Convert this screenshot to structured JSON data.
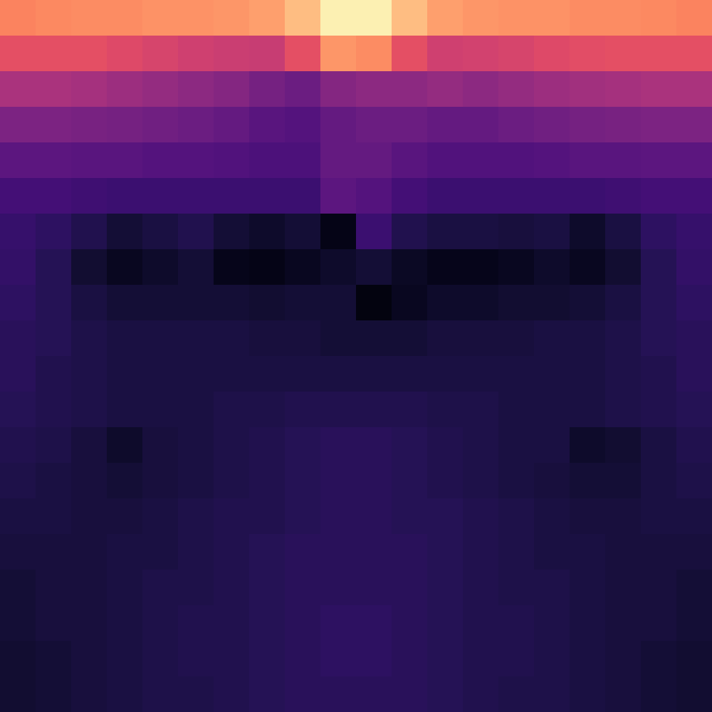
{
  "chart_data": {
    "type": "heatmap",
    "color": "magma",
    "tick_labels": false,
    "zlim": [
      0,
      1
    ],
    "cells": [
      [
        0.74,
        0.75,
        0.76,
        0.76,
        0.77,
        0.77,
        0.78,
        0.8,
        0.86,
        0.97,
        0.97,
        0.86,
        0.8,
        0.78,
        0.77,
        0.77,
        0.76,
        0.76,
        0.75,
        0.74
      ],
      [
        0.62,
        0.62,
        0.62,
        0.6,
        0.58,
        0.56,
        0.55,
        0.54,
        0.62,
        0.78,
        0.76,
        0.62,
        0.56,
        0.57,
        0.58,
        0.6,
        0.61,
        0.62,
        0.62,
        0.62
      ],
      [
        0.47,
        0.47,
        0.46,
        0.44,
        0.42,
        0.4,
        0.38,
        0.34,
        0.32,
        0.38,
        0.4,
        0.4,
        0.42,
        0.4,
        0.42,
        0.44,
        0.45,
        0.46,
        0.47,
        0.47
      ],
      [
        0.36,
        0.36,
        0.35,
        0.34,
        0.33,
        0.32,
        0.3,
        0.27,
        0.26,
        0.3,
        0.32,
        0.32,
        0.3,
        0.3,
        0.32,
        0.33,
        0.34,
        0.35,
        0.36,
        0.36
      ],
      [
        0.28,
        0.28,
        0.27,
        0.27,
        0.26,
        0.26,
        0.25,
        0.24,
        0.24,
        0.3,
        0.3,
        0.27,
        0.25,
        0.25,
        0.25,
        0.26,
        0.27,
        0.27,
        0.28,
        0.28
      ],
      [
        0.22,
        0.22,
        0.21,
        0.2,
        0.2,
        0.2,
        0.2,
        0.2,
        0.2,
        0.28,
        0.26,
        0.22,
        0.2,
        0.2,
        0.2,
        0.2,
        0.2,
        0.21,
        0.22,
        0.22
      ],
      [
        0.19,
        0.17,
        0.14,
        0.1,
        0.12,
        0.14,
        0.1,
        0.08,
        0.1,
        0.04,
        0.2,
        0.14,
        0.12,
        0.12,
        0.11,
        0.12,
        0.08,
        0.12,
        0.17,
        0.19
      ],
      [
        0.18,
        0.15,
        0.09,
        0.06,
        0.08,
        0.1,
        0.05,
        0.04,
        0.06,
        0.08,
        0.1,
        0.07,
        0.05,
        0.05,
        0.06,
        0.08,
        0.06,
        0.09,
        0.15,
        0.18
      ],
      [
        0.17,
        0.15,
        0.12,
        0.1,
        0.1,
        0.1,
        0.1,
        0.09,
        0.1,
        0.1,
        0.03,
        0.06,
        0.08,
        0.08,
        0.09,
        0.09,
        0.1,
        0.12,
        0.15,
        0.17
      ],
      [
        0.16,
        0.15,
        0.13,
        0.12,
        0.12,
        0.12,
        0.12,
        0.11,
        0.11,
        0.1,
        0.1,
        0.1,
        0.11,
        0.11,
        0.11,
        0.12,
        0.12,
        0.13,
        0.15,
        0.16
      ],
      [
        0.16,
        0.14,
        0.13,
        0.12,
        0.12,
        0.12,
        0.12,
        0.12,
        0.12,
        0.12,
        0.12,
        0.12,
        0.12,
        0.12,
        0.12,
        0.12,
        0.12,
        0.13,
        0.14,
        0.16
      ],
      [
        0.15,
        0.14,
        0.13,
        0.12,
        0.12,
        0.12,
        0.13,
        0.13,
        0.14,
        0.14,
        0.14,
        0.14,
        0.13,
        0.13,
        0.12,
        0.12,
        0.12,
        0.13,
        0.14,
        0.15
      ],
      [
        0.14,
        0.13,
        0.11,
        0.08,
        0.11,
        0.12,
        0.13,
        0.14,
        0.15,
        0.16,
        0.16,
        0.15,
        0.14,
        0.13,
        0.12,
        0.12,
        0.08,
        0.09,
        0.12,
        0.14
      ],
      [
        0.13,
        0.12,
        0.11,
        0.1,
        0.11,
        0.12,
        0.13,
        0.14,
        0.15,
        0.16,
        0.16,
        0.15,
        0.14,
        0.13,
        0.12,
        0.11,
        0.1,
        0.1,
        0.12,
        0.13
      ],
      [
        0.12,
        0.12,
        0.11,
        0.11,
        0.12,
        0.13,
        0.14,
        0.14,
        0.15,
        0.16,
        0.16,
        0.15,
        0.15,
        0.14,
        0.13,
        0.12,
        0.11,
        0.11,
        0.12,
        0.12
      ],
      [
        0.11,
        0.11,
        0.11,
        0.12,
        0.12,
        0.13,
        0.14,
        0.15,
        0.16,
        0.16,
        0.16,
        0.16,
        0.15,
        0.14,
        0.13,
        0.12,
        0.12,
        0.11,
        0.11,
        0.11
      ],
      [
        0.1,
        0.11,
        0.11,
        0.12,
        0.13,
        0.13,
        0.14,
        0.15,
        0.16,
        0.16,
        0.16,
        0.16,
        0.15,
        0.14,
        0.13,
        0.13,
        0.12,
        0.11,
        0.11,
        0.1
      ],
      [
        0.1,
        0.11,
        0.11,
        0.12,
        0.13,
        0.14,
        0.14,
        0.15,
        0.16,
        0.17,
        0.17,
        0.16,
        0.15,
        0.14,
        0.14,
        0.13,
        0.12,
        0.11,
        0.11,
        0.1
      ],
      [
        0.09,
        0.1,
        0.11,
        0.12,
        0.13,
        0.14,
        0.14,
        0.15,
        0.16,
        0.17,
        0.17,
        0.16,
        0.15,
        0.14,
        0.14,
        0.13,
        0.12,
        0.11,
        0.1,
        0.09
      ],
      [
        0.09,
        0.1,
        0.11,
        0.12,
        0.13,
        0.13,
        0.14,
        0.15,
        0.16,
        0.16,
        0.16,
        0.16,
        0.15,
        0.14,
        0.13,
        0.13,
        0.12,
        0.11,
        0.1,
        0.09
      ]
    ]
  }
}
